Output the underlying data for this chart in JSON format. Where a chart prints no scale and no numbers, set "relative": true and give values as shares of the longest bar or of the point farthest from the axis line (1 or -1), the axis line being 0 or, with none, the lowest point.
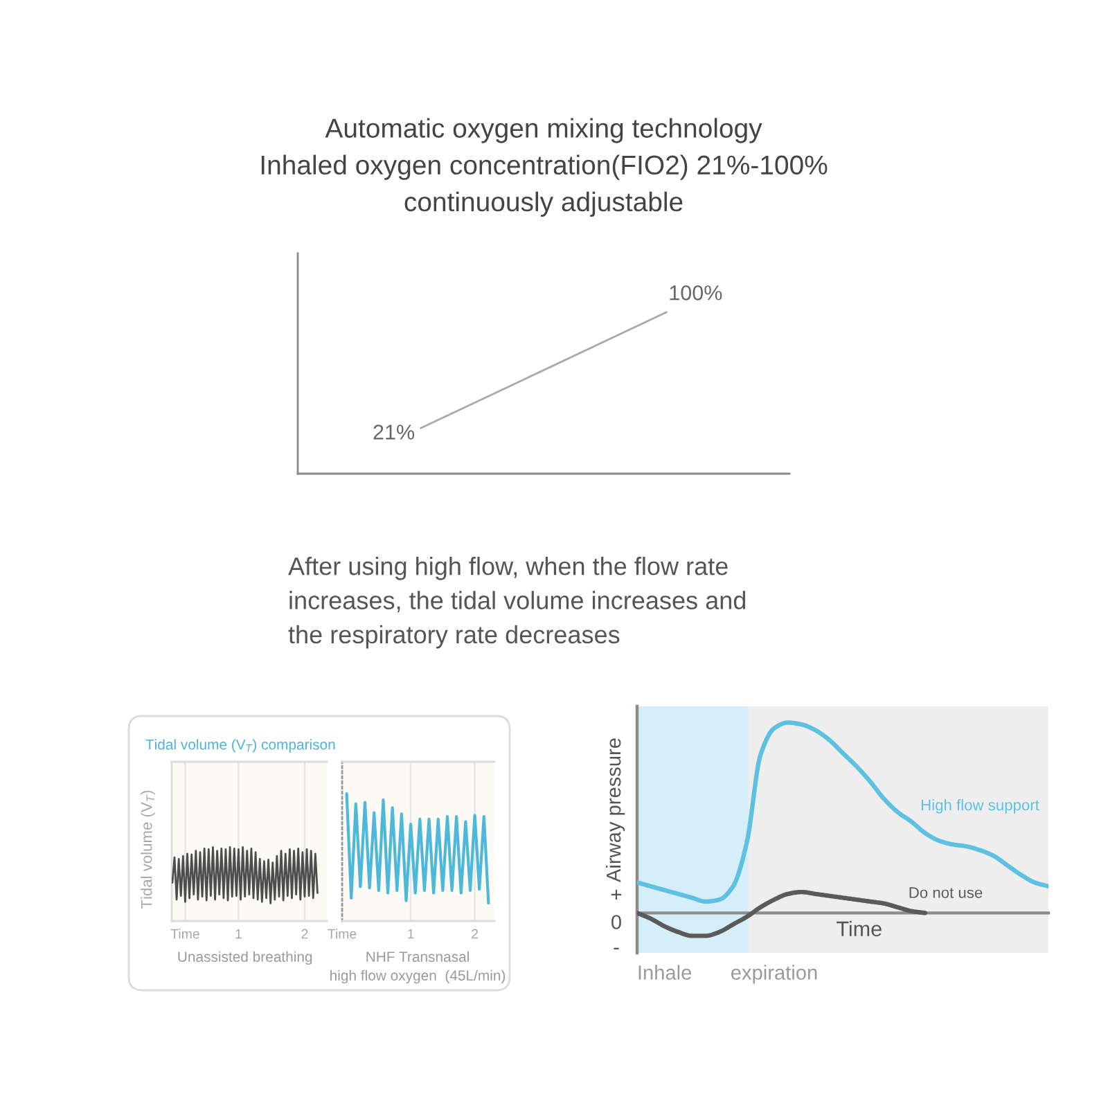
{
  "chart_data": [
    {
      "type": "line",
      "title": "Automatic oxygen mixing technology\nInhaled oxygen concentration(FIO2) 21%-100%\ncontinuously adjustable",
      "categories": [
        null,
        null
      ],
      "values": [
        21,
        100
      ],
      "value_labels": [
        "21%",
        "100%"
      ],
      "color": "#aaaaaa",
      "ylim": [
        -10,
        140
      ],
      "tick_labels": false
    },
    {
      "type": "line",
      "title": "Tidal volume (V$_{T}$) comparison",
      "ylabel": "Tidal volume (V$_{T}$)",
      "relative": true,
      "grid": "x",
      "tick_labels": "x",
      "annotations": [
        "After using high flow, when the flow rate\nincreases, the tidal volume increases and\nthe respiratory rate decreases"
      ],
      "categories": [
        null,
        null,
        null,
        null,
        null,
        null,
        "Time",
        null,
        null,
        null,
        null,
        null,
        null,
        null,
        null,
        null,
        null,
        null,
        null,
        null,
        null,
        null,
        null,
        null,
        null,
        null,
        null,
        null,
        null,
        null,
        null,
        "1",
        null,
        null,
        null,
        null,
        null,
        null,
        null,
        null,
        null,
        null,
        null,
        null,
        null,
        null,
        null,
        null,
        null,
        null,
        null,
        null,
        null,
        null,
        null,
        null,
        null,
        null,
        null,
        null,
        null,
        null,
        "2",
        null,
        null,
        null,
        null,
        null,
        null
      ],
      "series": [
        {
          "name": "Unassisted breathing",
          "color": "#4d4d4d",
          "values": [
            0.52,
            0.86,
            0.29,
            0.84,
            0.34,
            0.88,
            0.26,
            0.91,
            0.31,
            0.9,
            0.36,
            0.95,
            0.29,
            0.93,
            0.33,
            0.98,
            0.28,
            0.97,
            0.34,
            1.0,
            0.29,
            0.95,
            0.36,
            0.98,
            0.31,
            0.97,
            0.28,
            1.0,
            0.33,
            0.98,
            0.34,
            0.97,
            0.29,
            1.0,
            0.33,
            0.95,
            0.36,
            0.98,
            0.31,
            0.93,
            0.29,
            0.84,
            0.26,
            0.81,
            0.31,
            0.83,
            0.24,
            0.79,
            0.29,
            0.88,
            0.33,
            0.95,
            0.28,
            0.91,
            0.34,
            0.97,
            0.31,
            0.95,
            0.36,
            0.98,
            0.29,
            0.93,
            0.33,
            0.97,
            0.34,
            0.95,
            0.31,
            0.91,
            0.38
          ]
        }
      ]
    },
    {
      "type": "line",
      "relative": true,
      "grid": "x",
      "tick_labels": "x",
      "categories": [
        "Time",
        null,
        null,
        null,
        null,
        null,
        null,
        null,
        null,
        null,
        null,
        null,
        null,
        null,
        null,
        "1",
        null,
        null,
        null,
        null,
        null,
        null,
        null,
        null,
        null,
        null,
        null,
        null,
        null,
        "2",
        null,
        null,
        null
      ],
      "series": [
        {
          "name": "NHF Transnasal\nhigh flow oxygen  (45L/min)",
          "color": "#4db8da",
          "values": [
            null,
            1.0,
            0.18,
            0.92,
            0.27,
            0.93,
            0.26,
            0.85,
            0.24,
            0.95,
            0.22,
            0.89,
            0.24,
            0.84,
            0.16,
            0.76,
            0.22,
            0.8,
            0.24,
            0.8,
            0.22,
            0.8,
            0.24,
            0.82,
            0.24,
            0.82,
            0.22,
            0.78,
            0.24,
            0.83,
            0.25,
            0.82,
            0.14
          ]
        }
      ]
    },
    {
      "type": "line",
      "relative": true,
      "ylabel": "Airway pressure",
      "xlabel": "Time",
      "categories": [
        null,
        null,
        "Inhale",
        null,
        null,
        null,
        null,
        null,
        null,
        null,
        "expiration",
        null,
        null,
        null,
        null,
        null,
        null,
        null,
        null,
        null,
        null,
        null,
        null,
        null,
        null,
        null,
        null,
        null,
        null,
        null,
        null
      ],
      "tick_labels": "x",
      "annotations": [
        "+",
        "0",
        "-"
      ],
      "series": [
        {
          "name": "High flow support",
          "color": "#5ec1e2",
          "values": [
            0.16,
            0.14,
            0.12,
            0.1,
            0.08,
            0.06,
            0.07,
            0.14,
            0.37,
            0.83,
            0.97,
            1.0,
            0.99,
            0.96,
            0.91,
            0.84,
            0.77,
            0.69,
            0.6,
            0.53,
            0.48,
            0.42,
            0.38,
            0.36,
            0.35,
            0.33,
            0.3,
            0.25,
            0.2,
            0.16,
            0.14
          ]
        },
        {
          "name": "Do not use",
          "color": "#5a5a5a",
          "values": [
            0,
            -0.03,
            -0.07,
            -0.1,
            -0.12,
            -0.12,
            -0.1,
            -0.06,
            -0.02,
            0.03,
            0.07,
            0.1,
            0.11,
            0.1,
            0.09,
            0.08,
            0.07,
            0.06,
            0.05,
            0.03,
            0.01,
            0,
            null,
            null,
            null,
            null,
            null,
            null,
            null,
            null,
            null
          ]
        }
      ]
    }
  ]
}
